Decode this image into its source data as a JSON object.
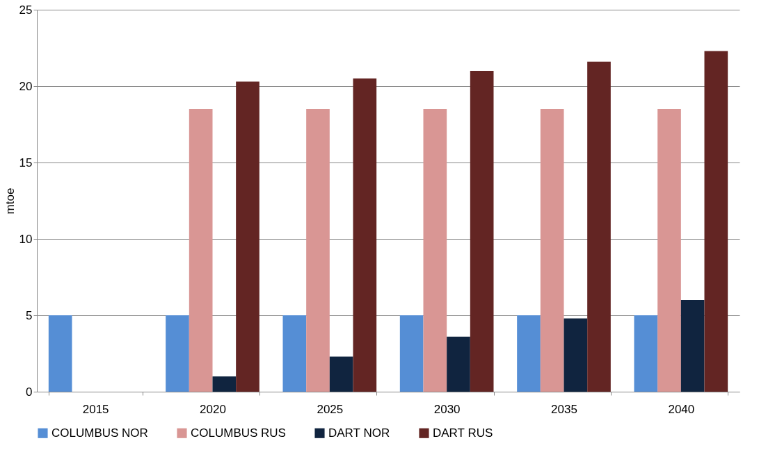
{
  "chart_data": {
    "type": "bar",
    "ylabel": "mtoe",
    "categories": [
      "2015",
      "2020",
      "2025",
      "2030",
      "2035",
      "2040"
    ],
    "series": [
      {
        "name": "COLUMBUS NOR",
        "color": "#558ed5",
        "values": [
          5,
          5,
          5,
          5,
          5,
          5
        ]
      },
      {
        "name": "COLUMBUS RUS",
        "color": "#d99694",
        "values": [
          null,
          18.5,
          18.5,
          18.5,
          18.5,
          18.5
        ]
      },
      {
        "name": "DART NOR",
        "color": "#10243f",
        "values": [
          null,
          1.0,
          2.3,
          3.6,
          4.8,
          6.0
        ]
      },
      {
        "name": "DART RUS",
        "color": "#632523",
        "values": [
          null,
          20.3,
          20.5,
          21.0,
          21.6,
          22.3
        ]
      }
    ],
    "ylim": [
      0,
      25
    ],
    "yticks": [
      0,
      5,
      10,
      15,
      20,
      25
    ],
    "grid": "y",
    "legend": "bottom"
  }
}
